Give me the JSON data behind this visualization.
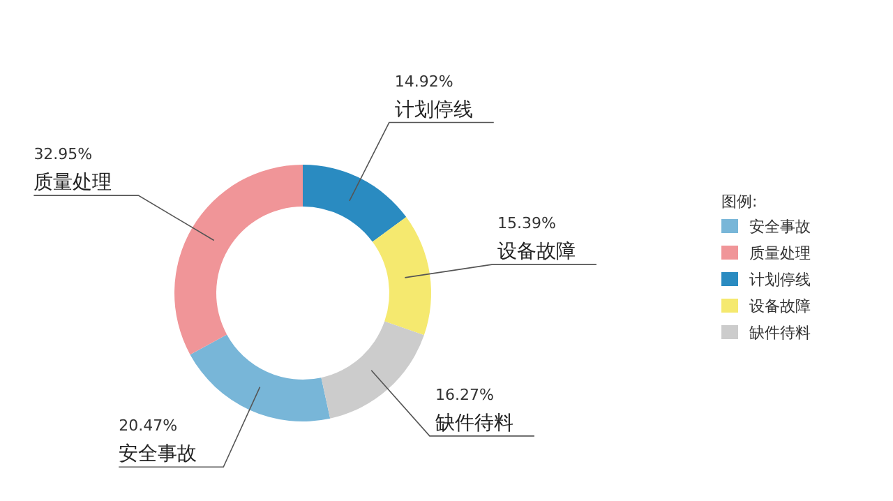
{
  "chart_data": {
    "type": "donut",
    "categories": [
      "安全事故",
      "质量处理",
      "计划停线",
      "设备故障",
      "缺件待料"
    ],
    "values": [
      20.47,
      32.95,
      14.92,
      15.39,
      16.27
    ],
    "colors": [
      "#78b6d8",
      "#f09598",
      "#2a8bc1",
      "#f5e96f",
      "#cccccc"
    ],
    "value_labels": [
      "20.47%",
      "32.95%",
      "14.92%",
      "15.39%",
      "16.27%"
    ],
    "legend_title": "图例:",
    "legend": "right"
  }
}
